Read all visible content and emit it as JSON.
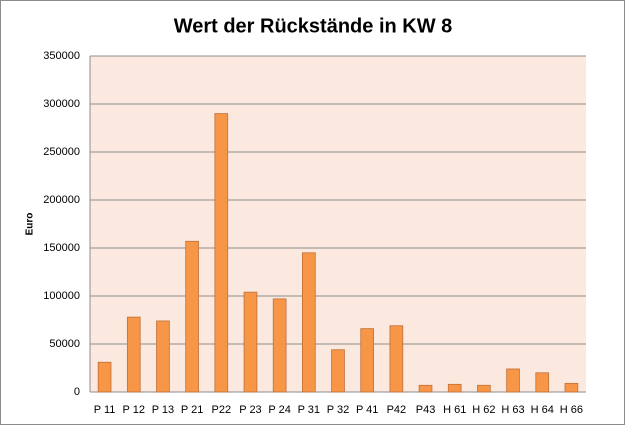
{
  "chart_data": {
    "type": "bar",
    "title": "Wert der Rückstände in KW 8",
    "y_label": "Euro",
    "categories": [
      "P 11",
      "P 12",
      "P 13",
      "P 21",
      "P22",
      "P 23",
      "P 24",
      "P 31",
      "P 32",
      "P 41",
      "P42",
      "P43",
      "H 61",
      "H 62",
      "H 63",
      "H 64",
      "H 66"
    ],
    "values": [
      31000,
      78000,
      74000,
      157000,
      290000,
      104000,
      97000,
      145000,
      44000,
      66000,
      69000,
      7000,
      8000,
      7000,
      24000,
      20000,
      9000
    ],
    "color": "#f79646",
    "ylim": [
      0,
      350000
    ],
    "yticks": [
      0,
      50000,
      100000,
      150000,
      200000,
      250000,
      300000,
      350000
    ],
    "grid": true
  }
}
